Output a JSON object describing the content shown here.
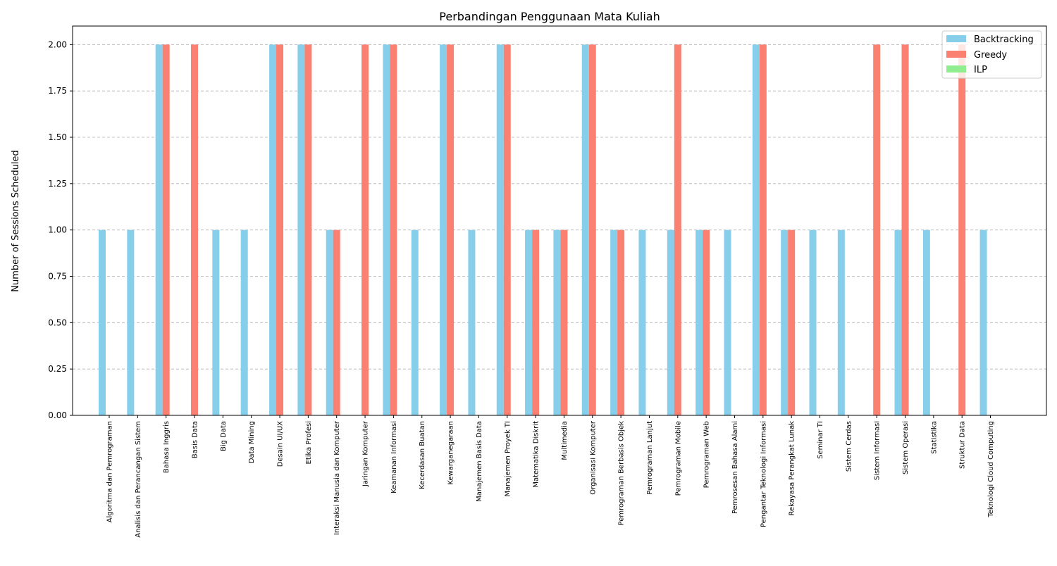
{
  "chart_data": {
    "type": "bar",
    "title": "Perbandingan Penggunaan Mata Kuliah",
    "xlabel": "",
    "ylabel": "Number of Sessions Scheduled",
    "ylim": [
      0,
      2.1
    ],
    "yticks": [
      "0.00",
      "0.25",
      "0.50",
      "0.75",
      "1.00",
      "1.25",
      "1.50",
      "1.75",
      "2.00"
    ],
    "grid": "y-dashed",
    "legend_position": "top-right",
    "categories": [
      "Algoritma dan Pemrograman",
      "Analisis dan Perancangan Sistem",
      "Bahasa Inggris",
      "Basis Data",
      "Big Data",
      "Data Mining",
      "Desain UI/UX",
      "Etika Profesi",
      "Interaksi Manusia dan Komputer",
      "Jaringan Komputer",
      "Keamanan Informasi",
      "Kecerdasan Buatan",
      "Kewarganegaraan",
      "Manajemen Basis Data",
      "Manajemen Proyek TI",
      "Matematika Diskrit",
      "Multimedia",
      "Organisasi Komputer",
      "Pemrograman Berbasis Objek",
      "Pemrograman Lanjut",
      "Pemrograman Mobile",
      "Pemrograman Web",
      "Pemrosesan Bahasa Alami",
      "Pengantar Teknologi Informasi",
      "Rekayasa Perangkat Lunak",
      "Seminar TI",
      "Sistem Cerdas",
      "Sistem Informasi",
      "Sistem Operasi",
      "Statistika",
      "Struktur Data",
      "Teknologi Cloud Computing"
    ],
    "series": [
      {
        "name": "Backtracking",
        "color": "#87ceeb",
        "values": [
          1,
          1,
          2,
          0,
          1,
          1,
          2,
          2,
          1,
          0,
          2,
          1,
          2,
          1,
          2,
          1,
          1,
          2,
          1,
          1,
          1,
          1,
          1,
          2,
          1,
          1,
          1,
          0,
          1,
          1,
          0,
          1
        ]
      },
      {
        "name": "Greedy",
        "color": "#fa8072",
        "values": [
          0,
          0,
          2,
          2,
          0,
          0,
          2,
          2,
          1,
          2,
          2,
          0,
          2,
          0,
          2,
          1,
          1,
          2,
          1,
          0,
          2,
          1,
          0,
          2,
          1,
          0,
          0,
          2,
          2,
          0,
          2,
          0
        ]
      },
      {
        "name": "ILP",
        "color": "#90ee90",
        "values": [
          0,
          0,
          0,
          0,
          0,
          0,
          0,
          0,
          0,
          0,
          0,
          0,
          0,
          0,
          0,
          0,
          0,
          0,
          0,
          0,
          0,
          0,
          0,
          0,
          0,
          0,
          0,
          0,
          0,
          0,
          0,
          0
        ]
      }
    ]
  }
}
